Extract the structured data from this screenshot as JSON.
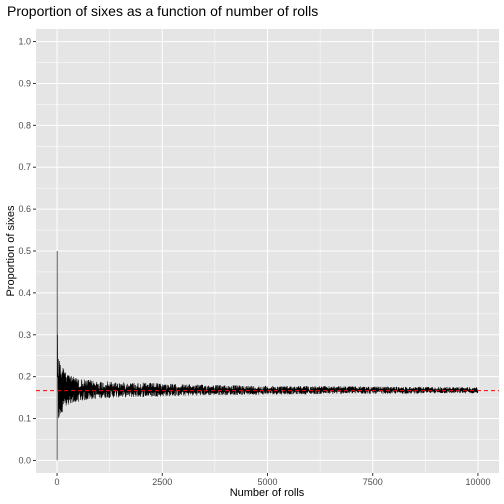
{
  "chart_data": {
    "type": "line",
    "title": "Proportion of sixes as a function of number of rolls",
    "xlabel": "Number of rolls",
    "ylabel": "Proportion of sixes",
    "xlim": [
      -500,
      10500
    ],
    "ylim": [
      -0.03,
      1.03
    ],
    "x_ticks": [
      0,
      2500,
      5000,
      7500,
      10000
    ],
    "x_tick_labels": [
      "0",
      "2500",
      "5000",
      "7500",
      "10000"
    ],
    "y_ticks": [
      0.0,
      0.1,
      0.2,
      0.3,
      0.4,
      0.5,
      0.6,
      0.7,
      0.8,
      0.9,
      1.0
    ],
    "y_tick_labels": [
      "0.0",
      "0.1",
      "0.2",
      "0.3",
      "0.4",
      "0.5",
      "0.6",
      "0.7",
      "0.8",
      "0.9",
      "1.0"
    ],
    "grid": true,
    "n_rolls": 10000,
    "series": [
      {
        "color": "#000000",
        "start": {
          "x": [
            1,
            2,
            3,
            4,
            5,
            6,
            8,
            10,
            14,
            20,
            30,
            50,
            100,
            200,
            400,
            1000,
            2000,
            4000,
            10000
          ],
          "y": [
            0.0,
            0.5,
            0.33,
            0.25,
            0.2,
            0.17,
            0.25,
            0.3,
            0.21,
            0.2,
            0.2,
            0.16,
            0.18,
            0.165,
            0.17,
            0.168,
            0.167,
            0.167,
            0.167
          ]
        },
        "envelope": {
          "x": [
            5,
            10,
            20,
            50,
            100,
            200,
            300,
            500,
            1000,
            1500,
            2000,
            3000,
            4000,
            5000,
            6000,
            7000,
            8000,
            9000,
            10000
          ],
          "low": [
            0.0,
            0.02,
            0.06,
            0.09,
            0.11,
            0.13,
            0.135,
            0.14,
            0.148,
            0.15,
            0.151,
            0.154,
            0.156,
            0.157,
            0.158,
            0.159,
            0.159,
            0.16,
            0.16
          ],
          "high": [
            0.3,
            0.28,
            0.27,
            0.25,
            0.23,
            0.21,
            0.205,
            0.195,
            0.19,
            0.187,
            0.186,
            0.182,
            0.18,
            0.178,
            0.178,
            0.177,
            0.176,
            0.176,
            0.175
          ]
        }
      }
    ],
    "reference_line": {
      "y": 0.1667,
      "color": "#ff0000",
      "style": "dashed"
    }
  },
  "colors": {
    "panel": "#e5e5e5",
    "grid": "#ffffff",
    "tick": "#333333"
  }
}
